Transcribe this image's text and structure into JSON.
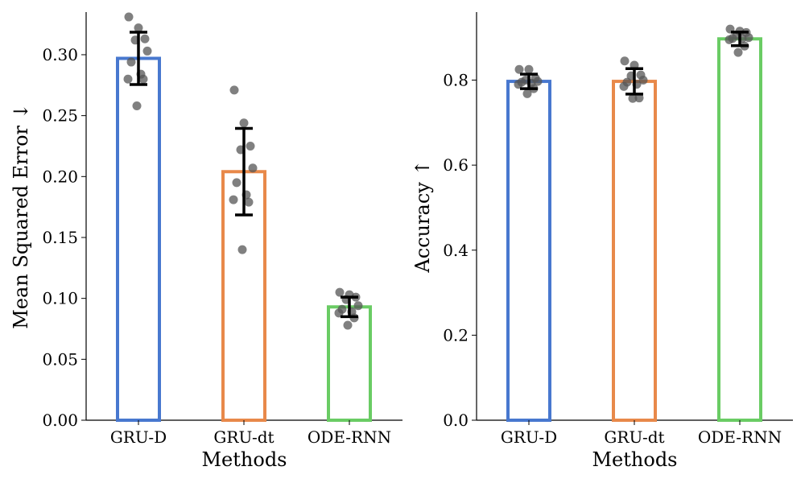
{
  "chart_data": [
    {
      "type": "bar",
      "xlabel": "Methods",
      "ylabel": "Mean Squared Error ↓",
      "categories": [
        "GRU-D",
        "GRU-dt",
        "ODE-RNN"
      ],
      "values": [
        0.297,
        0.204,
        0.093
      ],
      "error": [
        0.0215,
        0.0355,
        0.008
      ],
      "ylim": [
        0,
        0.335
      ],
      "yticks": [
        "0.00",
        "0.05",
        "0.10",
        "0.15",
        "0.20",
        "0.25",
        "0.30"
      ],
      "colors": [
        "#4878cf",
        "#e8894a",
        "#6acc64"
      ],
      "fill": "none",
      "points": [
        [
          0.331,
          0.322,
          0.313,
          0.312,
          0.303,
          0.294,
          0.284,
          0.28,
          0.28,
          0.258
        ],
        [
          0.271,
          0.244,
          0.225,
          0.222,
          0.207,
          0.195,
          0.185,
          0.181,
          0.179,
          0.14
        ],
        [
          0.105,
          0.103,
          0.101,
          0.099,
          0.094,
          0.091,
          0.089,
          0.088,
          0.084,
          0.078
        ]
      ],
      "legend": "none",
      "grid": false
    },
    {
      "type": "bar",
      "xlabel": "Methods",
      "ylabel": "Accuracy ↑",
      "categories": [
        "GRU-D",
        "GRU-dt",
        "ODE-RNN"
      ],
      "values": [
        0.797,
        0.797,
        0.897
      ],
      "error": [
        0.017,
        0.03,
        0.016
      ],
      "ylim": [
        0,
        0.96
      ],
      "yticks": [
        "0.0",
        "0.2",
        "0.4",
        "0.6",
        "0.8"
      ],
      "colors": [
        "#4878cf",
        "#e8894a",
        "#6acc64"
      ],
      "fill": "none",
      "points": [
        [
          0.825,
          0.825,
          0.805,
          0.8,
          0.797,
          0.795,
          0.793,
          0.79,
          0.78,
          0.768
        ],
        [
          0.845,
          0.835,
          0.812,
          0.81,
          0.8,
          0.795,
          0.79,
          0.785,
          0.758,
          0.757
        ],
        [
          0.92,
          0.915,
          0.912,
          0.905,
          0.9,
          0.898,
          0.898,
          0.895,
          0.88,
          0.865
        ]
      ],
      "legend": "none",
      "grid": false
    }
  ]
}
